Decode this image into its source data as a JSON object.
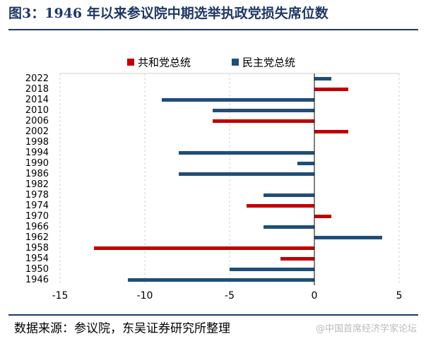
{
  "header": {
    "title": "图3：1946 年以来参议院中期选举执政党损失席位数"
  },
  "chart_data": {
    "type": "hbar",
    "categories": [
      "2022",
      "2018",
      "2014",
      "2010",
      "2006",
      "2002",
      "1998",
      "1994",
      "1990",
      "1986",
      "1982",
      "1978",
      "1974",
      "1970",
      "1966",
      "1962",
      "1958",
      "1954",
      "1950",
      "1946"
    ],
    "series": [
      {
        "name": "共和党总统",
        "color": "#c00000",
        "values": [
          null,
          2,
          null,
          null,
          -6,
          2,
          null,
          null,
          null,
          null,
          0,
          null,
          -4,
          1,
          null,
          null,
          -13,
          -2,
          null,
          null
        ]
      },
      {
        "name": "民主党总统",
        "color": "#1f4e79",
        "values": [
          1,
          null,
          -9,
          -6,
          null,
          null,
          0,
          -8,
          -1,
          -8,
          null,
          -3,
          null,
          null,
          -3,
          4,
          null,
          null,
          -5,
          -11
        ]
      }
    ],
    "xlim": [
      -15,
      5
    ],
    "xticks": [
      -15,
      -10,
      -5,
      0,
      5
    ],
    "grid": true,
    "legend": "top"
  },
  "footer": {
    "source": "数据来源：参议院，东吴证券研究所整理",
    "watermark": "@中国首席经济学家论坛"
  }
}
